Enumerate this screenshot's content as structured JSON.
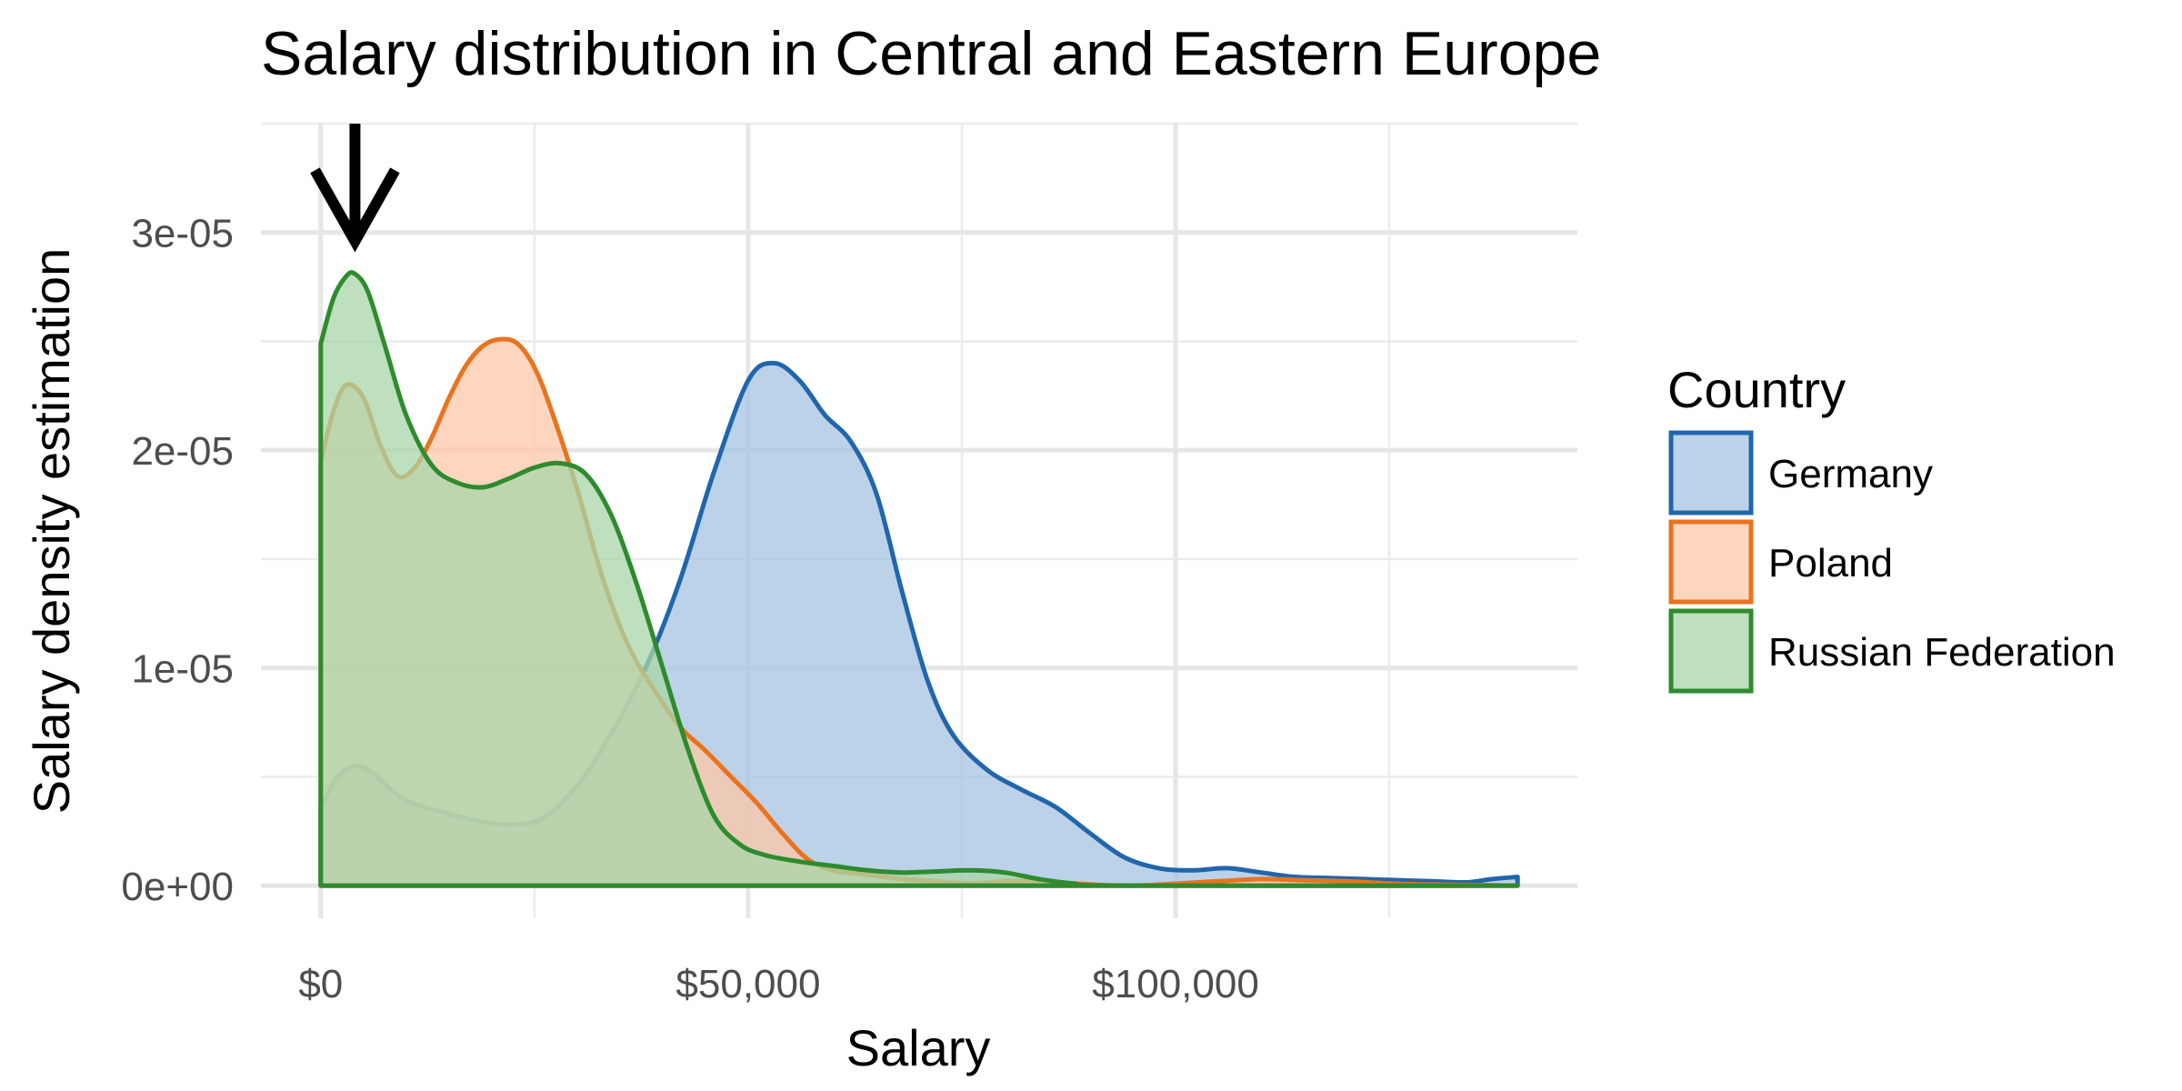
{
  "chart_data": {
    "type": "area",
    "title": "Salary distribution in Central and Eastern Europe",
    "xlabel": "Salary",
    "ylabel": "Salary density estimation",
    "xlim": [
      -7000,
      147000
    ],
    "ylim": [
      -1.5e-06,
      3.5e-05
    ],
    "x_ticks": [
      {
        "value": 0,
        "label": "$0"
      },
      {
        "value": 50000,
        "label": "$50,000"
      },
      {
        "value": 100000,
        "label": "$100,000"
      }
    ],
    "x_minor_ticks": [
      25000,
      75000,
      125000
    ],
    "y_ticks": [
      {
        "value": 0,
        "label": "0e+00"
      },
      {
        "value": 1e-05,
        "label": "1e-05"
      },
      {
        "value": 2e-05,
        "label": "2e-05"
      },
      {
        "value": 3e-05,
        "label": "3e-05"
      }
    ],
    "y_minor_ticks": [
      5e-06,
      1.5e-05,
      2.5e-05,
      3.5e-05
    ],
    "grid": true,
    "legend": {
      "title": "Country",
      "position": "right"
    },
    "annotations": [
      {
        "type": "arrow",
        "x": 4000,
        "y_from": 3.5e-05,
        "y_to": 2.96e-05
      }
    ],
    "series": [
      {
        "name": "Germany",
        "color": "#2166ac",
        "fill": "#a6c3e0",
        "points": [
          [
            0,
            3.6e-06
          ],
          [
            2000,
            5e-06
          ],
          [
            4000,
            5.5e-06
          ],
          [
            6000,
            5.2e-06
          ],
          [
            8000,
            4.5e-06
          ],
          [
            10000,
            3.9e-06
          ],
          [
            14000,
            3.4e-06
          ],
          [
            18000,
            3e-06
          ],
          [
            22000,
            2.8e-06
          ],
          [
            26000,
            3.1e-06
          ],
          [
            30000,
            4.6e-06
          ],
          [
            34000,
            7e-06
          ],
          [
            38000,
            1e-05
          ],
          [
            42000,
            1.4e-05
          ],
          [
            46000,
            1.9e-05
          ],
          [
            50000,
            2.32e-05
          ],
          [
            53000,
            2.4e-05
          ],
          [
            56000,
            2.32e-05
          ],
          [
            59000,
            2.16e-05
          ],
          [
            62000,
            2.04e-05
          ],
          [
            65000,
            1.8e-05
          ],
          [
            68000,
            1.35e-05
          ],
          [
            71000,
            9.4e-06
          ],
          [
            74000,
            6.9e-06
          ],
          [
            78000,
            5.3e-06
          ],
          [
            82000,
            4.4e-06
          ],
          [
            86000,
            3.6e-06
          ],
          [
            90000,
            2.4e-06
          ],
          [
            94000,
            1.3e-06
          ],
          [
            98000,
            8e-07
          ],
          [
            102000,
            7e-07
          ],
          [
            106000,
            8e-07
          ],
          [
            110000,
            6e-07
          ],
          [
            114000,
            4e-07
          ],
          [
            118000,
            3.5e-07
          ],
          [
            122000,
            3e-07
          ],
          [
            126000,
            2.5e-07
          ],
          [
            130000,
            2e-07
          ],
          [
            134000,
            1.5e-07
          ],
          [
            137000,
            3e-07
          ],
          [
            140000,
            4e-07
          ]
        ]
      },
      {
        "name": "Poland",
        "color": "#e8741f",
        "fill": "#fdc7a8",
        "points": [
          [
            0,
            1.95e-05
          ],
          [
            1500,
            2.18e-05
          ],
          [
            3000,
            2.3e-05
          ],
          [
            5000,
            2.24e-05
          ],
          [
            7000,
            2.02e-05
          ],
          [
            9000,
            1.88e-05
          ],
          [
            11000,
            1.92e-05
          ],
          [
            13000,
            2.06e-05
          ],
          [
            15000,
            2.24e-05
          ],
          [
            17000,
            2.39e-05
          ],
          [
            19000,
            2.48e-05
          ],
          [
            21000,
            2.51e-05
          ],
          [
            23000,
            2.49e-05
          ],
          [
            25000,
            2.38e-05
          ],
          [
            27000,
            2.18e-05
          ],
          [
            30000,
            1.82e-05
          ],
          [
            33000,
            1.41e-05
          ],
          [
            36000,
            1.1e-05
          ],
          [
            39000,
            9e-06
          ],
          [
            42000,
            7.3e-06
          ],
          [
            45000,
            6.2e-06
          ],
          [
            48000,
            5e-06
          ],
          [
            51000,
            3.8e-06
          ],
          [
            54000,
            2.4e-06
          ],
          [
            57000,
            1.2e-06
          ],
          [
            60000,
            7e-07
          ],
          [
            64000,
            5e-07
          ],
          [
            68000,
            3e-07
          ],
          [
            72000,
            2e-07
          ],
          [
            76000,
            1e-07
          ],
          [
            80000,
            2e-07
          ],
          [
            84000,
            2e-07
          ],
          [
            88000,
            1e-07
          ],
          [
            95000,
            0
          ],
          [
            105000,
            2e-07
          ],
          [
            110000,
            3e-07
          ],
          [
            115000,
            2.5e-07
          ],
          [
            120000,
            2e-07
          ],
          [
            125000,
            1e-07
          ],
          [
            130000,
            5e-08
          ],
          [
            140000,
            0
          ]
        ]
      },
      {
        "name": "Russian Federation",
        "color": "#2e8b2e",
        "fill": "#a8d6a8",
        "points": [
          [
            0,
            2.49e-05
          ],
          [
            1500,
            2.7e-05
          ],
          [
            3000,
            2.8e-05
          ],
          [
            4000,
            2.81e-05
          ],
          [
            5500,
            2.73e-05
          ],
          [
            7500,
            2.48e-05
          ],
          [
            10000,
            2.16e-05
          ],
          [
            13000,
            1.93e-05
          ],
          [
            16000,
            1.85e-05
          ],
          [
            19000,
            1.83e-05
          ],
          [
            22000,
            1.87e-05
          ],
          [
            25000,
            1.92e-05
          ],
          [
            28000,
            1.94e-05
          ],
          [
            31000,
            1.89e-05
          ],
          [
            34000,
            1.7e-05
          ],
          [
            37000,
            1.38e-05
          ],
          [
            40000,
            1e-05
          ],
          [
            43000,
            6.2e-06
          ],
          [
            46000,
            3.2e-06
          ],
          [
            49000,
            1.9e-06
          ],
          [
            52000,
            1.4e-06
          ],
          [
            56000,
            1.1e-06
          ],
          [
            60000,
            9e-07
          ],
          [
            64000,
            7e-07
          ],
          [
            68000,
            6e-07
          ],
          [
            72000,
            6.5e-07
          ],
          [
            76000,
            7e-07
          ],
          [
            80000,
            6e-07
          ],
          [
            84000,
            3e-07
          ],
          [
            88000,
            1e-07
          ],
          [
            94000,
            0
          ],
          [
            140000,
            0
          ]
        ]
      }
    ]
  }
}
